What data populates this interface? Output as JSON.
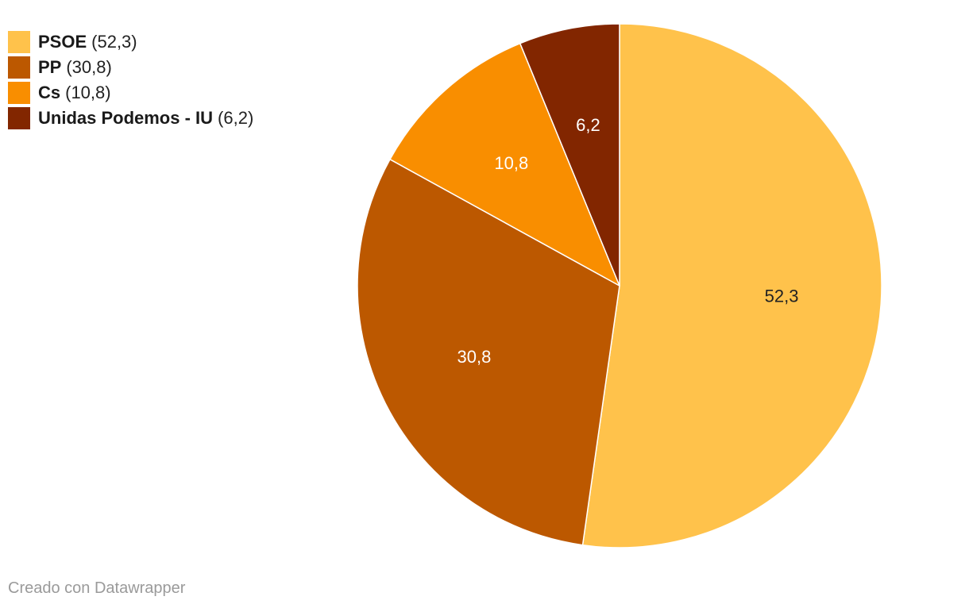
{
  "chart_data": {
    "type": "pie",
    "categories": [
      "PSOE",
      "PP",
      "Cs",
      "Unidas Podemos - IU"
    ],
    "values": [
      52.3,
      30.8,
      10.8,
      6.2
    ],
    "value_labels": [
      "52,3",
      "30,8",
      "10,8",
      "6,2"
    ],
    "legend_values": [
      "(52,3)",
      "(30,8)",
      "(10,8)",
      "(6,2)"
    ],
    "colors": [
      "#FFC24B",
      "#BC5800",
      "#F98E00",
      "#822600"
    ],
    "label_colors": [
      "#222222",
      "#ffffff",
      "#ffffff",
      "#ffffff"
    ],
    "start": "12 o'clock",
    "direction": "clockwise",
    "legend_position": "top-left"
  },
  "footer": {
    "credit": "Creado con Datawrapper"
  }
}
